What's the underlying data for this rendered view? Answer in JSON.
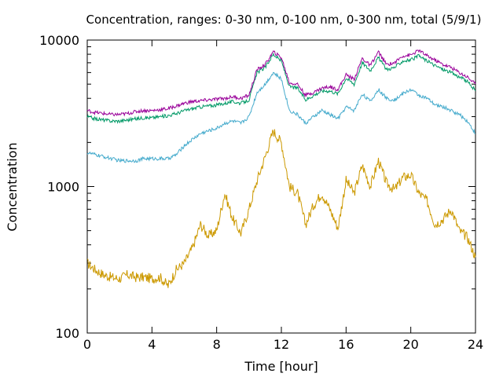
{
  "chart_data": {
    "type": "line",
    "title": "Concentration, ranges: 0-30 nm, 0-100 nm, 0-300 nm, total (5/9/1)",
    "xlabel": "Time [hour]",
    "ylabel": "Concentration",
    "xlim": [
      0,
      24
    ],
    "ylim": [
      100,
      10000
    ],
    "yscale": "log",
    "grid": false,
    "x_ticks": [
      0,
      4,
      8,
      12,
      16,
      20,
      24
    ],
    "x_tick_labels": [
      "0",
      "4",
      "8",
      "12",
      "16",
      "20",
      "24"
    ],
    "y_ticks": [
      100,
      1000,
      10000
    ],
    "y_tick_labels": [
      "100",
      "1000",
      "10000"
    ],
    "series": [
      {
        "color": "#cc9900",
        "x": [
          0,
          0.5,
          1,
          1.5,
          2,
          2.5,
          3,
          3.5,
          4,
          4.5,
          5,
          5.5,
          6,
          6.5,
          7,
          7.5,
          8,
          8.5,
          9,
          9.5,
          10,
          10.5,
          11,
          11.5,
          12,
          12.5,
          13,
          13.5,
          14,
          14.5,
          15,
          15.5,
          16,
          16.5,
          17,
          17.5,
          18,
          18.5,
          19,
          19.5,
          20,
          20.5,
          21,
          21.5,
          22,
          22.5,
          23,
          23.5,
          24
        ],
        "values": [
          300,
          270,
          250,
          240,
          235,
          250,
          240,
          240,
          235,
          240,
          210,
          270,
          300,
          380,
          550,
          460,
          500,
          900,
          600,
          480,
          700,
          1100,
          1600,
          2400,
          2000,
          1000,
          900,
          550,
          750,
          900,
          700,
          520,
          1100,
          900,
          1400,
          1000,
          1500,
          1050,
          950,
          1150,
          1200,
          900,
          800,
          550,
          600,
          700,
          500,
          450,
          330
        ]
      },
      {
        "color": "#44aacc",
        "x": [
          0,
          0.5,
          1,
          1.5,
          2,
          2.5,
          3,
          3.5,
          4,
          4.5,
          5,
          5.5,
          6,
          6.5,
          7,
          7.5,
          8,
          8.5,
          9,
          9.5,
          10,
          10.5,
          11,
          11.5,
          12,
          12.5,
          13,
          13.5,
          14,
          14.5,
          15,
          15.5,
          16,
          16.5,
          17,
          17.5,
          18,
          18.5,
          19,
          19.5,
          20,
          20.5,
          21,
          21.5,
          22,
          22.5,
          23,
          23.5,
          24
        ],
        "values": [
          1700,
          1650,
          1600,
          1550,
          1500,
          1500,
          1500,
          1550,
          1550,
          1550,
          1550,
          1650,
          1900,
          2100,
          2300,
          2400,
          2500,
          2700,
          2800,
          2700,
          3000,
          4400,
          5000,
          6000,
          5400,
          3300,
          3100,
          2700,
          3000,
          3300,
          3100,
          2900,
          3500,
          3300,
          4300,
          3800,
          4600,
          4000,
          3900,
          4300,
          4600,
          4200,
          4000,
          3600,
          3500,
          3300,
          3100,
          2800,
          2300
        ]
      },
      {
        "color": "#009966",
        "x": [
          0,
          0.5,
          1,
          1.5,
          2,
          2.5,
          3,
          3.5,
          4,
          4.5,
          5,
          5.5,
          6,
          6.5,
          7,
          7.5,
          8,
          8.5,
          9,
          9.5,
          10,
          10.5,
          11,
          11.5,
          12,
          12.5,
          13,
          13.5,
          14,
          14.5,
          15,
          15.5,
          16,
          16.5,
          17,
          17.5,
          18,
          18.5,
          19,
          19.5,
          20,
          20.5,
          21,
          21.5,
          22,
          22.5,
          23,
          23.5,
          24
        ],
        "values": [
          3000,
          2900,
          2850,
          2800,
          2800,
          2850,
          2900,
          2950,
          2950,
          3000,
          3050,
          3150,
          3300,
          3400,
          3500,
          3550,
          3600,
          3700,
          3800,
          3700,
          3900,
          6000,
          6500,
          8000,
          7200,
          4800,
          4700,
          3900,
          4200,
          4500,
          4500,
          4300,
          5500,
          5000,
          7000,
          6200,
          7600,
          6300,
          6500,
          7200,
          7300,
          7800,
          7200,
          6700,
          6300,
          6000,
          5600,
          5200,
          4500
        ]
      },
      {
        "color": "#990099",
        "x": [
          0,
          0.5,
          1,
          1.5,
          2,
          2.5,
          3,
          3.5,
          4,
          4.5,
          5,
          5.5,
          6,
          6.5,
          7,
          7.5,
          8,
          8.5,
          9,
          9.5,
          10,
          10.5,
          11,
          11.5,
          12,
          12.5,
          13,
          13.5,
          14,
          14.5,
          15,
          15.5,
          16,
          16.5,
          17,
          17.5,
          18,
          18.5,
          19,
          19.5,
          20,
          20.5,
          21,
          21.5,
          22,
          22.5,
          23,
          23.5,
          24
        ],
        "values": [
          3300,
          3200,
          3150,
          3100,
          3100,
          3150,
          3250,
          3300,
          3300,
          3350,
          3400,
          3550,
          3700,
          3800,
          3850,
          3900,
          3950,
          4000,
          4100,
          4000,
          4200,
          6300,
          6800,
          8300,
          7600,
          5100,
          5000,
          4200,
          4400,
          4700,
          4800,
          4600,
          5800,
          5400,
          7500,
          6700,
          8300,
          6800,
          7000,
          7800,
          7900,
          8500,
          7800,
          7300,
          6800,
          6500,
          6000,
          5600,
          5000
        ]
      }
    ]
  }
}
